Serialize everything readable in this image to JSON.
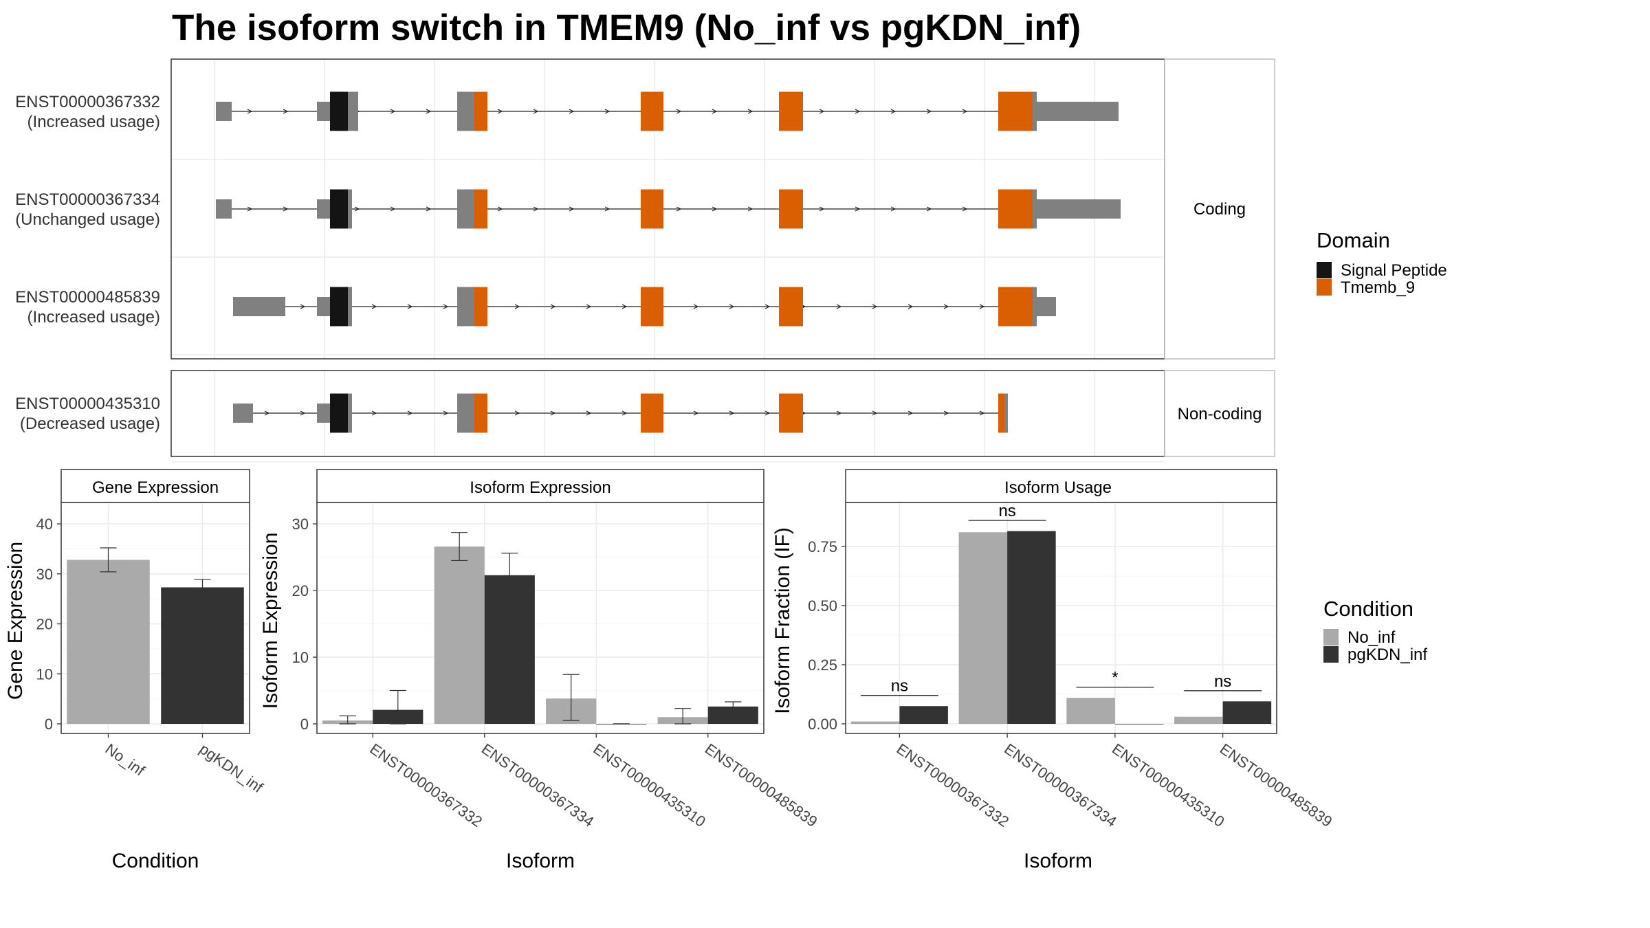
{
  "title": "The isoform switch in TMEM9 (No_inf vs pgKDN_inf)",
  "colors": {
    "signal_peptide": "#141414",
    "tmemb_9": "#D95F02",
    "exon_noncoding": "#808080",
    "no_inf": "#AAAAAA",
    "pgkdn_inf": "#333333"
  },
  "transcripts": {
    "strip_coding": "Coding",
    "strip_noncoding": "Non-coding",
    "items": [
      {
        "id": "ENST00000367332",
        "usage": "(Increased usage)",
        "group": "coding"
      },
      {
        "id": "ENST00000367334",
        "usage": "(Unchanged usage)",
        "group": "coding"
      },
      {
        "id": "ENST00000485839",
        "usage": "(Increased usage)",
        "group": "coding"
      },
      {
        "id": "ENST00000435310",
        "usage": "(Decreased usage)",
        "group": "noncoding"
      }
    ]
  },
  "domain_legend": {
    "title": "Domain",
    "items": [
      {
        "label": "Signal Peptide",
        "color": "#141414"
      },
      {
        "label": "Tmemb_9",
        "color": "#D95F02"
      }
    ]
  },
  "condition_legend": {
    "title": "Condition",
    "items": [
      {
        "label": "No_inf",
        "color": "#AAAAAA"
      },
      {
        "label": "pgKDN_inf",
        "color": "#333333"
      }
    ]
  },
  "chart_data": [
    {
      "type": "bar",
      "title": "Gene Expression",
      "xlabel": "Condition",
      "ylabel": "Gene Expression",
      "ylim": [
        0,
        44
      ],
      "yticks": [
        0,
        10,
        20,
        30,
        40
      ],
      "categories": [
        "No_inf",
        "pgKDN_inf"
      ],
      "series": [
        {
          "values": [
            32.8,
            27.3
          ],
          "error_low": [
            30.4,
            25.7
          ],
          "error_high": [
            35.2,
            28.9
          ]
        }
      ]
    },
    {
      "type": "bar",
      "title": "Isoform Expression",
      "xlabel": "Isoform",
      "ylabel": "Isoform Expression",
      "ylim": [
        0,
        33
      ],
      "yticks": [
        0,
        10,
        20,
        30
      ],
      "categories": [
        "ENST00000367332",
        "ENST00000367334",
        "ENST00000435310",
        "ENST00000485839"
      ],
      "series": [
        {
          "name": "No_inf",
          "values": [
            0.5,
            26.6,
            3.8,
            1.0
          ],
          "error_low": [
            0.0,
            24.5,
            0.5,
            0.0
          ],
          "error_high": [
            1.2,
            28.7,
            7.4,
            2.3
          ]
        },
        {
          "name": "pgKDN_inf",
          "values": [
            2.1,
            22.3,
            0.0,
            2.6
          ],
          "error_low": [
            0.0,
            19.2,
            0.0,
            2.0
          ],
          "error_high": [
            5.0,
            25.6,
            0.0,
            3.3
          ]
        }
      ]
    },
    {
      "type": "bar",
      "title": "Isoform Usage",
      "xlabel": "Isoform",
      "ylabel": "Isoform Fraction (IF)",
      "ylim": [
        0,
        0.93
      ],
      "yticks": [
        "0.00",
        "0.25",
        "0.50",
        "0.75"
      ],
      "categories": [
        "ENST00000367332",
        "ENST00000367334",
        "ENST00000435310",
        "ENST00000485839"
      ],
      "series": [
        {
          "name": "No_inf",
          "values": [
            0.01,
            0.81,
            0.11,
            0.03
          ]
        },
        {
          "name": "pgKDN_inf",
          "values": [
            0.075,
            0.815,
            0.0,
            0.095
          ]
        }
      ],
      "significance": [
        "ns",
        "ns",
        "*",
        "ns"
      ],
      "significance_level": [
        0.12,
        0.86,
        0.155,
        0.14
      ]
    }
  ]
}
